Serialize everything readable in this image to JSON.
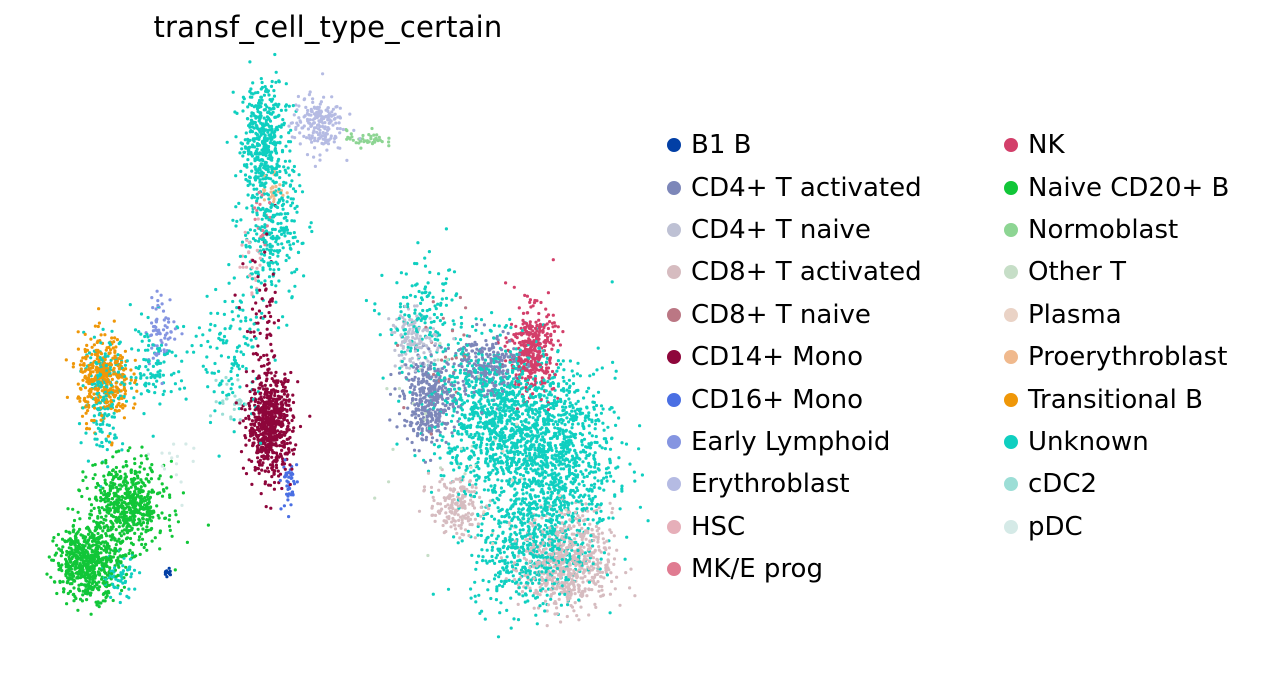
{
  "chart_data": {
    "type": "scatter",
    "title": "transf_cell_type_certain",
    "xlabel": "",
    "ylabel": "",
    "grid": false,
    "axes_visible": false,
    "legend_placement": "right, two columns",
    "categories": [
      {
        "label": "B1 B",
        "color": "#023fa5"
      },
      {
        "label": "CD4+ T activated",
        "color": "#7d87b9"
      },
      {
        "label": "CD4+ T naive",
        "color": "#bec1d4"
      },
      {
        "label": "CD8+ T activated",
        "color": "#d6bcc0"
      },
      {
        "label": "CD8+ T naive",
        "color": "#bb7784"
      },
      {
        "label": "CD14+ Mono",
        "color": "#8e063b"
      },
      {
        "label": "CD16+ Mono",
        "color": "#4a6fe3"
      },
      {
        "label": "Early Lymphoid",
        "color": "#8595e1"
      },
      {
        "label": "Erythroblast",
        "color": "#b5bbe3"
      },
      {
        "label": "HSC",
        "color": "#e6afb9"
      },
      {
        "label": "MK/E prog",
        "color": "#e07b91"
      },
      {
        "label": "NK",
        "color": "#d33f6a"
      },
      {
        "label": "Naive CD20+ B",
        "color": "#11c638"
      },
      {
        "label": "Normoblast",
        "color": "#8dd593"
      },
      {
        "label": "Other T",
        "color": "#c6dec7"
      },
      {
        "label": "Plasma",
        "color": "#ead3c6"
      },
      {
        "label": "Proerythroblast",
        "color": "#f0b98d"
      },
      {
        "label": "Transitional B",
        "color": "#ef9708"
      },
      {
        "label": "Unknown",
        "color": "#0fcfc0"
      },
      {
        "label": "cDC2",
        "color": "#9cded6"
      },
      {
        "label": "pDC",
        "color": "#d5eae7"
      }
    ],
    "clusters": [
      {
        "category": "Unknown",
        "x": 0.05,
        "y": 0.82,
        "sx": 0.035,
        "sy": 0.08,
        "n": 420
      },
      {
        "category": "Unknown",
        "x": 0.07,
        "y": 0.55,
        "sx": 0.05,
        "sy": 0.1,
        "n": 300
      },
      {
        "category": "Unknown",
        "x": -0.45,
        "y": 0.1,
        "sx": 0.03,
        "sy": 0.08,
        "n": 180
      },
      {
        "category": "Unknown",
        "x": -0.3,
        "y": 0.18,
        "sx": 0.06,
        "sy": 0.06,
        "n": 120
      },
      {
        "category": "Unknown",
        "x": -0.05,
        "y": 0.2,
        "sx": 0.05,
        "sy": 0.1,
        "n": 120
      },
      {
        "category": "Unknown",
        "x": -0.4,
        "y": -0.42,
        "sx": 0.03,
        "sy": 0.03,
        "n": 60
      },
      {
        "category": "Unknown",
        "x": 0.55,
        "y": 0.3,
        "sx": 0.06,
        "sy": 0.08,
        "n": 160
      },
      {
        "category": "Unknown",
        "x": 0.78,
        "y": 0.05,
        "sx": 0.1,
        "sy": 0.1,
        "n": 900
      },
      {
        "category": "Unknown",
        "x": 0.95,
        "y": -0.1,
        "sx": 0.1,
        "sy": 0.12,
        "n": 1100
      },
      {
        "category": "Unknown",
        "x": 0.88,
        "y": -0.35,
        "sx": 0.09,
        "sy": 0.08,
        "n": 500
      },
      {
        "category": "Erythroblast",
        "x": 0.22,
        "y": 0.86,
        "sx": 0.04,
        "sy": 0.04,
        "n": 200
      },
      {
        "category": "Normoblast",
        "x": 0.37,
        "y": 0.82,
        "sx": 0.03,
        "sy": 0.012,
        "n": 40
      },
      {
        "category": "Proerythroblast",
        "x": 0.08,
        "y": 0.68,
        "sx": 0.02,
        "sy": 0.03,
        "n": 25
      },
      {
        "category": "MK/E prog",
        "x": 0.04,
        "y": 0.58,
        "sx": 0.02,
        "sy": 0.04,
        "n": 20
      },
      {
        "category": "HSC",
        "x": 0.02,
        "y": 0.48,
        "sx": 0.02,
        "sy": 0.05,
        "n": 25
      },
      {
        "category": "Early Lymphoid",
        "x": -0.27,
        "y": 0.28,
        "sx": 0.025,
        "sy": 0.05,
        "n": 70
      },
      {
        "category": "Transitional B",
        "x": -0.45,
        "y": 0.14,
        "sx": 0.04,
        "sy": 0.06,
        "n": 380
      },
      {
        "category": "Naive CD20+ B",
        "x": -0.38,
        "y": -0.22,
        "sx": 0.06,
        "sy": 0.06,
        "n": 600
      },
      {
        "category": "Naive CD20+ B",
        "x": -0.5,
        "y": -0.38,
        "sx": 0.05,
        "sy": 0.05,
        "n": 600
      },
      {
        "category": "B1 B",
        "x": -0.25,
        "y": -0.41,
        "sx": 0.006,
        "sy": 0.006,
        "n": 10
      },
      {
        "category": "CD14+ Mono",
        "x": 0.07,
        "y": 0.01,
        "sx": 0.035,
        "sy": 0.07,
        "n": 700
      },
      {
        "category": "CD14+ Mono",
        "x": 0.05,
        "y": 0.3,
        "sx": 0.03,
        "sy": 0.1,
        "n": 60
      },
      {
        "category": "CD16+ Mono",
        "x": 0.13,
        "y": -0.16,
        "sx": 0.012,
        "sy": 0.04,
        "n": 40
      },
      {
        "category": "CD4+ T naive",
        "x": 0.52,
        "y": 0.25,
        "sx": 0.035,
        "sy": 0.04,
        "n": 140
      },
      {
        "category": "CD4+ T activated",
        "x": 0.57,
        "y": 0.08,
        "sx": 0.04,
        "sy": 0.06,
        "n": 380
      },
      {
        "category": "CD4+ T activated",
        "x": 0.75,
        "y": 0.18,
        "sx": 0.05,
        "sy": 0.05,
        "n": 220
      },
      {
        "category": "NK",
        "x": 0.89,
        "y": 0.22,
        "sx": 0.035,
        "sy": 0.06,
        "n": 360
      },
      {
        "category": "CD8+ T activated",
        "x": 0.65,
        "y": -0.22,
        "sx": 0.04,
        "sy": 0.04,
        "n": 180
      },
      {
        "category": "CD8+ T activated",
        "x": 1.0,
        "y": -0.38,
        "sx": 0.07,
        "sy": 0.07,
        "n": 650
      },
      {
        "category": "CD8+ T naive",
        "x": 0.62,
        "y": 0.2,
        "sx": 0.08,
        "sy": 0.1,
        "n": 25
      },
      {
        "category": "cDC2",
        "x": -0.05,
        "y": 0.08,
        "sx": 0.02,
        "sy": 0.03,
        "n": 25
      },
      {
        "category": "Other T",
        "x": 0.6,
        "y": 0.0,
        "sx": 0.1,
        "sy": 0.15,
        "n": 25
      },
      {
        "category": "Plasma",
        "x": 0.8,
        "y": -0.2,
        "sx": 0.1,
        "sy": 0.1,
        "n": 20
      },
      {
        "category": "pDC",
        "x": -0.18,
        "y": -0.1,
        "sx": 0.05,
        "sy": 0.05,
        "n": 15
      }
    ],
    "xlim": [
      -0.65,
      1.15
    ],
    "ylim": [
      -0.6,
      1.0
    ]
  }
}
